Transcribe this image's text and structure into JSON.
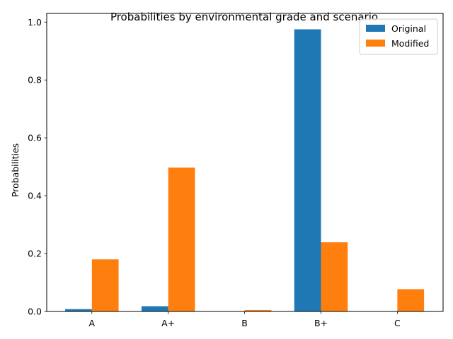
{
  "chart_data": {
    "type": "bar",
    "title": "Probabilities by environmental grade and scenario",
    "xlabel": "",
    "ylabel": "Probabilities",
    "categories": [
      "A",
      "A+",
      "B",
      "B+",
      "C"
    ],
    "series": [
      {
        "name": "Original",
        "color": "#1f77b4",
        "values": [
          0.008,
          0.018,
          0.0,
          0.975,
          0.0
        ]
      },
      {
        "name": "Modified",
        "color": "#ff7f0e",
        "values": [
          0.18,
          0.497,
          0.005,
          0.239,
          0.077
        ]
      }
    ],
    "ylim": [
      0,
      1.03
    ],
    "yticks": [
      0.0,
      0.2,
      0.4,
      0.6,
      0.8,
      1.0
    ],
    "ytick_labels": [
      "0.0",
      "0.2",
      "0.4",
      "0.6",
      "0.8",
      "1.0"
    ],
    "grid": false,
    "legend_position": "top-right"
  }
}
